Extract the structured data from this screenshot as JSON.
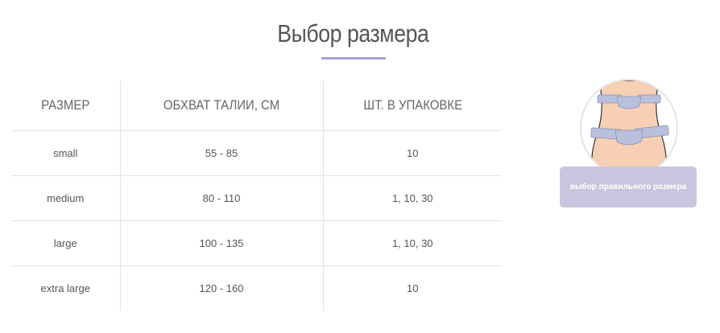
{
  "title": "Выбор размера",
  "accent_color": "#aaa2d2",
  "table": {
    "headers": [
      "РАЗМЕР",
      "ОБХВАТ ТАЛИИ, СМ",
      "ШТ. В УПАКОВКЕ"
    ],
    "rows": [
      [
        "small",
        "55 - 85",
        "10"
      ],
      [
        "medium",
        "80 - 110",
        "1, 10, 30"
      ],
      [
        "large",
        "100 - 135",
        "1, 10, 30"
      ],
      [
        "extra large",
        "120 - 160",
        "10"
      ]
    ]
  },
  "size_guide": {
    "button_label": "выбор правильного размера",
    "button_color": "#c8c6de",
    "icon": "waist-measuring-tape-illustration"
  }
}
